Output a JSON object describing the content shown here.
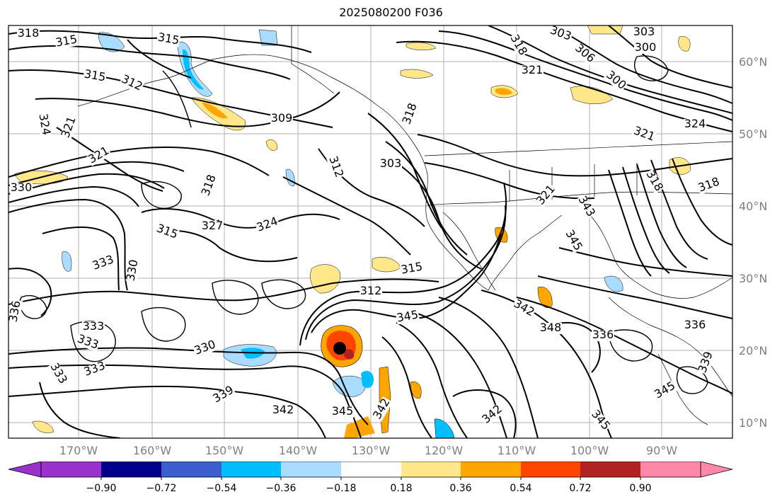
{
  "title": "2025080200 F036",
  "map": {
    "lat_labels": [
      "60°N",
      "50°N",
      "40°N",
      "30°N",
      "20°N",
      "10°N"
    ],
    "lon_labels": [
      "170°W",
      "160°W",
      "150°W",
      "140°W",
      "130°W",
      "120°W",
      "110°W",
      "100°W",
      "90°W"
    ],
    "contour_labels": [
      "318",
      "315",
      "315",
      "315",
      "312",
      "309",
      "324",
      "321",
      "321",
      "330",
      "318",
      "315",
      "324",
      "321",
      "312",
      "303",
      "318",
      "303",
      "303",
      "300",
      "306",
      "300",
      "318",
      "321",
      "324",
      "321",
      "318",
      "318",
      "327",
      "321",
      "343",
      "345",
      "333",
      "330",
      "336",
      "315",
      "312",
      "333",
      "333",
      "333",
      "333",
      "330",
      "339",
      "342",
      "345",
      "342",
      "345",
      "342",
      "348",
      "336",
      "336",
      "339",
      "345",
      "342",
      "345"
    ],
    "colors": {
      "contour": "#000000",
      "grid": "#b0b0b0",
      "pos_018": "#ffe78a",
      "pos_036": "#ffa500",
      "pos_054": "#ff4500",
      "neg_018": "#aadcff",
      "neg_036": "#00bfff",
      "neg_054": "#3a5fcd"
    },
    "storm_marker": "black-dot"
  },
  "colorbar": {
    "ticks": [
      "−0.90",
      "−0.72",
      "−0.54",
      "−0.36",
      "−0.18",
      "0.18",
      "0.36",
      "0.54",
      "0.72",
      "0.90"
    ],
    "bin_colors": [
      "#9932cc",
      "#00008b",
      "#3a5fcd",
      "#00bfff",
      "#aadcff",
      "#ffffff",
      "#ffe78a",
      "#ffa500",
      "#ff4500",
      "#b22222",
      "#ff88aa",
      "#ff88aa"
    ],
    "under_color": "#9932cc",
    "over_color": "#ff88aa"
  }
}
